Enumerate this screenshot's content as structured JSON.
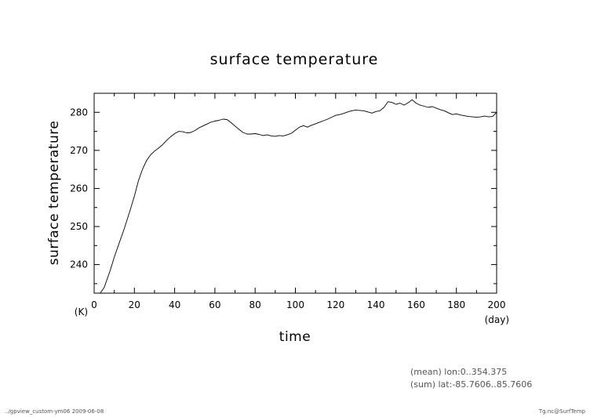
{
  "chart_data": {
    "type": "line",
    "title": "surface temperature",
    "xlabel": "time",
    "ylabel": "surface temperature",
    "x_unit": "(day)",
    "y_unit": "(K)",
    "xlim": [
      0,
      200
    ],
    "ylim": [
      232.5,
      285
    ],
    "xticks": [
      0,
      20,
      40,
      60,
      80,
      100,
      120,
      140,
      160,
      180,
      200
    ],
    "yticks": [
      240,
      250,
      260,
      270,
      280
    ],
    "grid": false,
    "series": [
      {
        "x": [
          0,
          3,
          5,
          8,
          10,
          12,
          15,
          18,
          20,
          22,
          24,
          26,
          28,
          30,
          32,
          34,
          36,
          38,
          40,
          42,
          44,
          46,
          48,
          50,
          52,
          54,
          56,
          58,
          60,
          62,
          64,
          66,
          68,
          70,
          72,
          74,
          76,
          78,
          80,
          82,
          84,
          86,
          88,
          90,
          92,
          94,
          96,
          98,
          100,
          102,
          104,
          106,
          108,
          110,
          112,
          114,
          116,
          118,
          120,
          122,
          124,
          126,
          128,
          130,
          132,
          134,
          136,
          138,
          140,
          142,
          144,
          146,
          148,
          150,
          152,
          154,
          156,
          158,
          160,
          162,
          164,
          166,
          168,
          170,
          172,
          174,
          176,
          178,
          180,
          182,
          184,
          186,
          188,
          190,
          192,
          194,
          196,
          198,
          200
        ],
        "values": [
          232.5,
          232.5,
          234,
          238.5,
          242,
          245,
          249.5,
          254.5,
          258,
          262,
          265,
          267.3,
          268.8,
          269.8,
          270.6,
          271.5,
          272.6,
          273.6,
          274.4,
          275,
          274.9,
          274.6,
          274.7,
          275.2,
          275.9,
          276.4,
          276.9,
          277.4,
          277.7,
          277.9,
          278.2,
          278.1,
          277.3,
          276.4,
          275.5,
          274.7,
          274.3,
          274.3,
          274.4,
          274.2,
          273.9,
          274.1,
          273.8,
          273.7,
          273.9,
          273.8,
          274.1,
          274.5,
          275.3,
          276.1,
          276.5,
          276.1,
          276.6,
          277,
          277.4,
          277.8,
          278.2,
          278.7,
          279.2,
          279.4,
          279.7,
          280.1,
          280.4,
          280.6,
          280.5,
          280.4,
          280.1,
          279.8,
          280.2,
          280.4,
          281.3,
          282.8,
          282.6,
          282.1,
          282.4,
          281.9,
          282.5,
          283.3,
          282.4,
          281.9,
          281.6,
          281.3,
          281.5,
          281.1,
          280.7,
          280.4,
          279.9,
          279.4,
          279.6,
          279.3,
          279.1,
          278.9,
          278.8,
          278.7,
          278.8,
          279,
          278.8,
          278.9,
          280
        ]
      }
    ]
  },
  "notes": {
    "mean": "(mean) lon:0..354.375",
    "sum": "(sum) lat:-85.7606..85.7606"
  },
  "footer": {
    "left": "../gpview_custom-ym06  2009-06-08",
    "right": "Tg.nc@SurfTemp"
  }
}
